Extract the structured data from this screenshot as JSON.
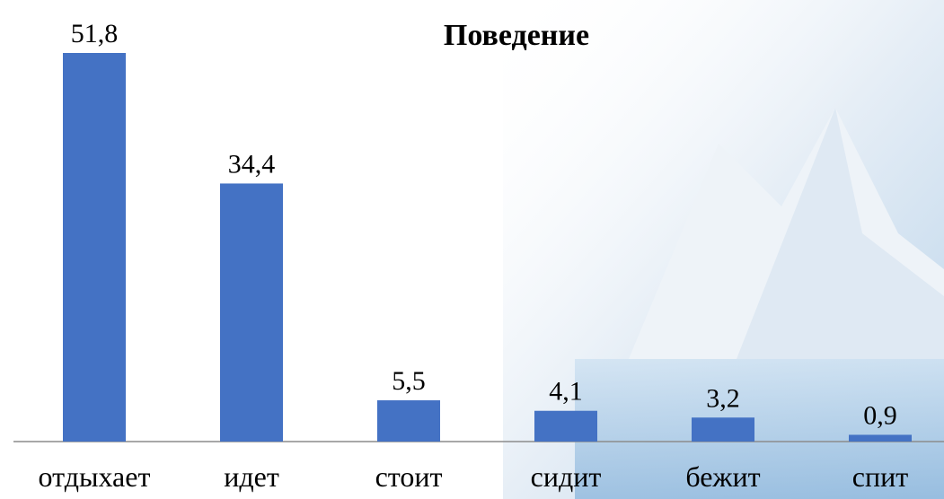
{
  "chart_data": {
    "type": "bar",
    "title": "Поведение",
    "categories": [
      "отдыхает",
      "идет",
      "стоит",
      "сидит",
      "бежит",
      "спит"
    ],
    "values": [
      51.8,
      34.4,
      5.5,
      4.1,
      3.2,
      0.9
    ],
    "value_labels": [
      "51,8",
      "34,4",
      "5,5",
      "4,1",
      "3,2",
      "0,9"
    ],
    "color": "#4472c4"
  }
}
